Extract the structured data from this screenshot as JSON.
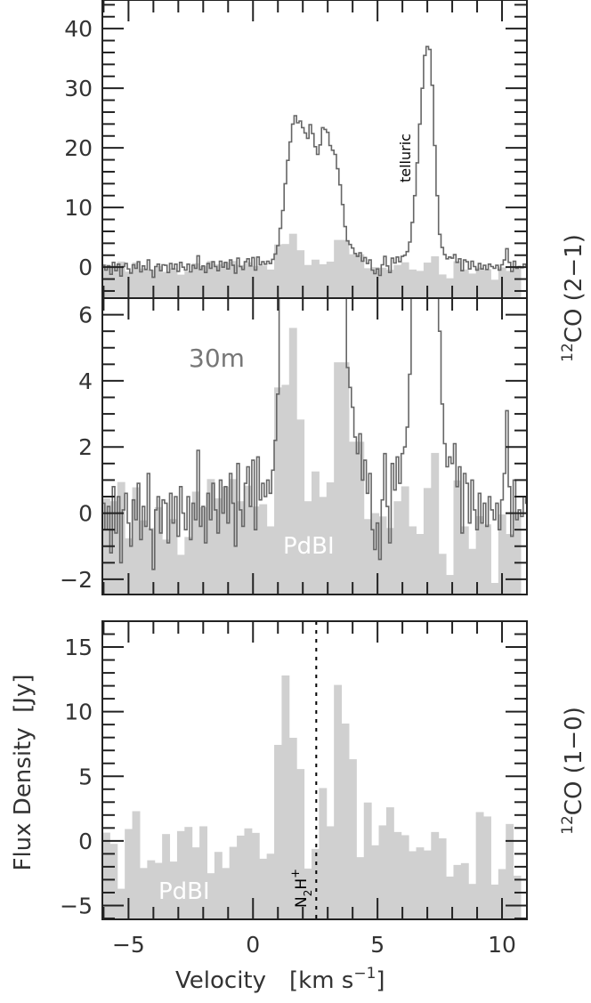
{
  "chart_data": [
    {
      "type": "bar+line",
      "panel": "top",
      "ylim": [
        -5.2,
        44.8
      ],
      "xlim": [
        -6.05,
        11.0
      ],
      "yticks": [
        "0",
        "10",
        "20",
        "30",
        "40"
      ],
      "ytick_values": [
        0,
        10,
        20,
        30,
        40
      ],
      "annotation": "telluric",
      "series_ref": [
        "30m",
        "PdBI"
      ]
    },
    {
      "type": "bar+line",
      "panel": "middle",
      "ylim": [
        -2.46,
        6.5
      ],
      "xlim": [
        -6.05,
        11.0
      ],
      "yticks": [
        "−2",
        "0",
        "2",
        "4",
        "6"
      ],
      "ytick_values": [
        -2,
        0,
        2,
        4,
        6
      ],
      "line_label": "30m",
      "bar_label": "PdBI",
      "series_ref": [
        "30m",
        "PdBI"
      ]
    },
    {
      "type": "bar",
      "panel": "bottom",
      "ylim": [
        -6.07,
        17.0
      ],
      "xlim": [
        -6.05,
        11.0
      ],
      "yticks": [
        "−5",
        "0",
        "5",
        "10",
        "15"
      ],
      "ytick_values": [
        -5,
        0,
        5,
        10,
        15
      ],
      "bar_label": "PdBI",
      "marker_line": {
        "x": 2.54,
        "label_main": "N",
        "label_sub": "2",
        "label_main2": "H",
        "label_sup": "+"
      },
      "series_ref": [
        "PdBI_10"
      ]
    }
  ],
  "series": {
    "30m": {
      "color": "#666666",
      "x": [
        -6.0,
        -5.9,
        -5.8,
        -5.7,
        -5.6,
        -5.5,
        -5.4,
        -5.3,
        -5.2,
        -5.1,
        -5.0,
        -4.9,
        -4.8,
        -4.7,
        -4.6,
        -4.5,
        -4.4,
        -4.3,
        -4.2,
        -4.1,
        -4.0,
        -3.9,
        -3.8,
        -3.7,
        -3.6,
        -3.5,
        -3.4,
        -3.3,
        -3.2,
        -3.1,
        -3.0,
        -2.9,
        -2.8,
        -2.7,
        -2.6,
        -2.5,
        -2.4,
        -2.3,
        -2.2,
        -2.1,
        -2.0,
        -1.9,
        -1.8,
        -1.7,
        -1.6,
        -1.5,
        -1.4,
        -1.3,
        -1.2,
        -1.1,
        -1.0,
        -0.9,
        -0.8,
        -0.7,
        -0.6,
        -0.5,
        -0.4,
        -0.3,
        -0.2,
        -0.1,
        0.0,
        0.1,
        0.2,
        0.3,
        0.4,
        0.5,
        0.6,
        0.7,
        0.8,
        0.9,
        1.0,
        1.1,
        1.2,
        1.3,
        1.4,
        1.5,
        1.6,
        1.7,
        1.8,
        1.9,
        2.0,
        2.1,
        2.2,
        2.3,
        2.4,
        2.5,
        2.6,
        2.7,
        2.8,
        2.9,
        3.0,
        3.1,
        3.2,
        3.3,
        3.4,
        3.5,
        3.6,
        3.7,
        3.8,
        3.9,
        4.0,
        4.1,
        4.2,
        4.3,
        4.4,
        4.5,
        4.6,
        4.7,
        4.8,
        4.9,
        5.0,
        5.1,
        5.2,
        5.3,
        5.4,
        5.5,
        5.6,
        5.7,
        5.8,
        5.9,
        6.0,
        6.1,
        6.2,
        6.3,
        6.4,
        6.5,
        6.6,
        6.7,
        6.8,
        6.9,
        7.0,
        7.1,
        7.2,
        7.3,
        7.4,
        7.5,
        7.6,
        7.7,
        7.8,
        7.9,
        8.0,
        8.1,
        8.2,
        8.3,
        8.4,
        8.5,
        8.6,
        8.7,
        8.8,
        8.9,
        9.0,
        9.1,
        9.2,
        9.3,
        9.4,
        9.5,
        9.6,
        9.7,
        9.8,
        9.9,
        10.0,
        10.1,
        10.2,
        10.3,
        10.4,
        10.5,
        10.6,
        10.7,
        10.8,
        10.9,
        11.0
      ],
      "y": [
        0.3,
        -0.5,
        0.2,
        -1.2,
        0.8,
        -0.6,
        0.5,
        -1.5,
        0.1,
        0.6,
        -0.3,
        -1.0,
        0.4,
        -0.2,
        0.9,
        -0.8,
        0.2,
        -0.4,
        1.2,
        -0.5,
        -1.7,
        0.1,
        0.5,
        -0.6,
        0.4,
        0.3,
        -0.9,
        0.6,
        -0.3,
        0.5,
        -0.7,
        0.8,
        0.0,
        -0.5,
        0.5,
        -0.8,
        0.3,
        -0.2,
        1.9,
        -0.4,
        0.2,
        -0.9,
        0.6,
        -0.2,
        0.9,
        0.1,
        -0.6,
        1.0,
        0.0,
        0.8,
        -0.3,
        1.2,
        0.3,
        -1.0,
        1.5,
        0.1,
        -0.4,
        0.9,
        1.4,
        0.2,
        1.6,
        -0.5,
        1.7,
        0.4,
        0.9,
        0.5,
        1.0,
        0.6,
        1.3,
        2.2,
        3.6,
        6.5,
        9.5,
        14.0,
        17.9,
        21.0,
        24.0,
        25.4,
        24.2,
        24.5,
        23.4,
        22.5,
        21.6,
        23.9,
        22.4,
        20.2,
        18.9,
        20.5,
        23.4,
        23.1,
        22.6,
        20.4,
        19.6,
        18.9,
        16.5,
        13.8,
        10.5,
        6.8,
        4.4,
        3.8,
        3.2,
        2.3,
        1.8,
        2.4,
        1.0,
        1.6,
        0.6,
        1.2,
        -0.5,
        -1.1,
        -0.3,
        -1.4,
        0.4,
        1.8,
        0.2,
        -0.9,
        1.5,
        0.7,
        1.7,
        0.9,
        1.8,
        2.0,
        2.6,
        4.2,
        7.5,
        12.0,
        17.5,
        24.0,
        30.0,
        35.5,
        37.0,
        36.5,
        30.5,
        20.4,
        12.0,
        5.5,
        3.3,
        2.1,
        1.4,
        1.7,
        1.5,
        2.1,
        0.8,
        1.4,
        -0.6,
        1.2,
        0.9,
        -0.3,
        1.0,
        0.1,
        -0.5,
        0.6,
        -0.3,
        0.3,
        -0.4,
        0.5,
        0.1,
        -0.2,
        0.3,
        -0.5,
        0.4,
        1.2,
        3.1,
        0.8,
        -0.7,
        1.0,
        -0.2,
        0.1,
        -0.1,
        0.5,
        0.3
      ]
    },
    "PdBI": {
      "color": "#d0d0d0",
      "x": [
        -5.9,
        -5.6,
        -5.3,
        -5.0,
        -4.7,
        -4.4,
        -4.1,
        -3.8,
        -3.5,
        -3.2,
        -2.9,
        -2.6,
        -2.3,
        -2.0,
        -1.7,
        -1.4,
        -1.1,
        -0.8,
        -0.5,
        -0.2,
        0.1,
        0.4,
        0.7,
        1.0,
        1.3,
        1.6,
        1.9,
        2.2,
        2.5,
        2.8,
        3.1,
        3.4,
        3.7,
        4.0,
        4.3,
        4.6,
        4.9,
        5.2,
        5.5,
        5.8,
        6.1,
        6.4,
        6.7,
        7.0,
        7.3,
        7.6,
        7.9,
        8.2,
        8.5,
        8.8,
        9.1,
        9.4,
        9.7,
        10.0,
        10.3,
        10.6
      ],
      "y": [
        0.45,
        0.36,
        0.94,
        -0.76,
        0.78,
        -0.22,
        -0.45,
        0.18,
        -0.8,
        -0.18,
        -1.26,
        -0.72,
        0.65,
        0.18,
        1.03,
        0.45,
        0.8,
        1.03,
        0.36,
        0.83,
        0.2,
        0.27,
        -0.4,
        3.8,
        3.88,
        5.6,
        2.83,
        0.36,
        1.26,
        0.49,
        0.93,
        4.56,
        4.56,
        2.16,
        2.16,
        -0.18,
        0.0,
        -0.1,
        -0.45,
        0.36,
        0.81,
        -0.4,
        -0.63,
        0.76,
        1.82,
        -1.23,
        -1.87,
        0.99,
        -0.4,
        -1.08,
        -0.09,
        -0.34,
        -2.11,
        -0.04,
        -0.63,
        -0.04
      ]
    },
    "PdBI_10": {
      "color": "#d0d0d0",
      "x": [
        -5.9,
        -5.6,
        -5.3,
        -5.0,
        -4.7,
        -4.4,
        -4.1,
        -3.8,
        -3.5,
        -3.2,
        -2.9,
        -2.6,
        -2.3,
        -2.0,
        -1.7,
        -1.4,
        -1.1,
        -0.8,
        -0.5,
        -0.2,
        0.1,
        0.4,
        0.7,
        1.0,
        1.3,
        1.6,
        1.9,
        2.2,
        2.5,
        2.8,
        3.1,
        3.4,
        3.7,
        4.0,
        4.3,
        4.6,
        4.9,
        5.2,
        5.5,
        5.8,
        6.1,
        6.4,
        6.7,
        7.0,
        7.3,
        7.6,
        7.9,
        8.2,
        8.5,
        8.8,
        9.1,
        9.4,
        9.7,
        10.0,
        10.3,
        10.6
      ],
      "y": [
        0.64,
        -0.23,
        -3.7,
        0.92,
        2.3,
        -2.1,
        -1.5,
        -1.7,
        0.53,
        -1.6,
        0.76,
        1.08,
        -0.5,
        1.13,
        -2.5,
        -0.85,
        -2.1,
        -0.46,
        0.41,
        0.97,
        0.62,
        -1.38,
        -0.99,
        7.43,
        12.8,
        7.98,
        5.56,
        -2.14,
        -0.62,
        4.09,
        1.13,
        12.07,
        9.08,
        6.32,
        -1.26,
        2.97,
        -0.34,
        1.2,
        2.6,
        0.69,
        0.44,
        -0.8,
        -0.5,
        -0.74,
        0.69,
        0.2,
        -2.76,
        -1.86,
        -1.72,
        -3.33,
        2.23,
        1.89,
        -3.38,
        -2.18,
        1.31,
        -2.69
      ]
    }
  },
  "x_axis": {
    "ticks": [
      "−5",
      "0",
      "5",
      "10"
    ],
    "tick_values": [
      -5,
      0,
      5,
      10
    ],
    "label": "Velocity",
    "unit_label": "[km s",
    "unit_sup": "−1",
    "unit_close": "]"
  },
  "y_axis_label": "Flux Density  [Jy]",
  "right_labels": [
    {
      "sup": "12",
      "text": "CO (2−1)"
    },
    {
      "sup": "12",
      "text": "CO (1−0)"
    }
  ]
}
